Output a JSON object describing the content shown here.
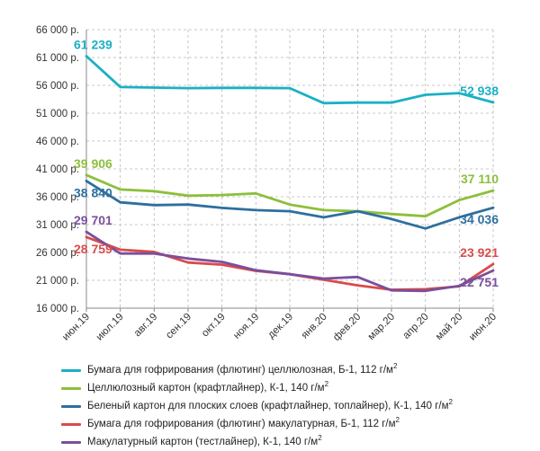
{
  "chart_data": {
    "type": "line",
    "categories": [
      "июн.19",
      "июл.19",
      "авг.19",
      "сен.19",
      "окт.19",
      "ноя.19",
      "дек.19",
      "янв.20",
      "фев.20",
      "мар.20",
      "апр.20",
      "май 20",
      "июн.20"
    ],
    "y_ticks": [
      "16 000 р.",
      "21 000 р.",
      "26 000 р.",
      "31 000 р.",
      "36 000 р.",
      "41 000 р.",
      "46 000 р.",
      "51 000 р.",
      "56 000 р.",
      "61 000 р.",
      "66 000 р."
    ],
    "ylim": [
      16000,
      66000
    ],
    "grid": "dashed",
    "legend_position": "bottom",
    "series": [
      {
        "name": "Бумага для гофрирования (флютинг) целлюлозная, Б-1, 112 г/м",
        "sup": "2",
        "color": "#1ab0c4",
        "values": [
          61239,
          55700,
          55600,
          55500,
          55550,
          55550,
          55500,
          52800,
          52900,
          52900,
          54300,
          54600,
          52938
        ],
        "labels": [
          {
            "index": 0,
            "text": "61 239",
            "pos": "above"
          },
          {
            "index": 12,
            "text": "52 938",
            "pos": "above"
          }
        ]
      },
      {
        "name": "Целлюлозный картон (крафтлайнер), К-1, 140 г/м",
        "sup": "2",
        "color": "#8dbf3c",
        "values": [
          39906,
          37300,
          37000,
          36200,
          36300,
          36600,
          34600,
          33600,
          33400,
          32900,
          32500,
          35400,
          37110
        ],
        "labels": [
          {
            "index": 0,
            "text": "39 906",
            "pos": "above"
          },
          {
            "index": 12,
            "text": "37 110",
            "pos": "above"
          }
        ]
      },
      {
        "name": "Беленый картон для плоских слоев (крафтлайнер, топлайнер), К-1, 140 г/м",
        "sup": "2",
        "color": "#2d6f9e",
        "values": [
          38840,
          35000,
          34500,
          34600,
          34000,
          33600,
          33400,
          32300,
          33400,
          32000,
          30300,
          32300,
          34036
        ],
        "labels": [
          {
            "index": 0,
            "text": "38 840",
            "pos": "below"
          },
          {
            "index": 12,
            "text": "34 036",
            "pos": "below"
          }
        ]
      },
      {
        "name": "Бумага для гофрирования (флютинг) макулатурная, Б-1, 112 г/м",
        "sup": "2",
        "color": "#d94b4b",
        "values": [
          28759,
          26500,
          26100,
          24200,
          23800,
          22700,
          22100,
          21100,
          20100,
          19300,
          19400,
          19900,
          23921
        ],
        "labels": [
          {
            "index": 0,
            "text": "28 759",
            "pos": "below"
          },
          {
            "index": 12,
            "text": "23 921",
            "pos": "above"
          }
        ]
      },
      {
        "name": "Макулатурный картон (тестлайнер), К-1, 140 г/м",
        "sup": "2",
        "color": "#7a4f9c",
        "values": [
          29701,
          25800,
          25800,
          24900,
          24300,
          22800,
          22100,
          21300,
          21600,
          19200,
          19100,
          20000,
          22751
        ],
        "labels": [
          {
            "index": 0,
            "text": "29 701",
            "pos": "above"
          },
          {
            "index": 12,
            "text": "22 751",
            "pos": "below"
          }
        ]
      }
    ]
  }
}
